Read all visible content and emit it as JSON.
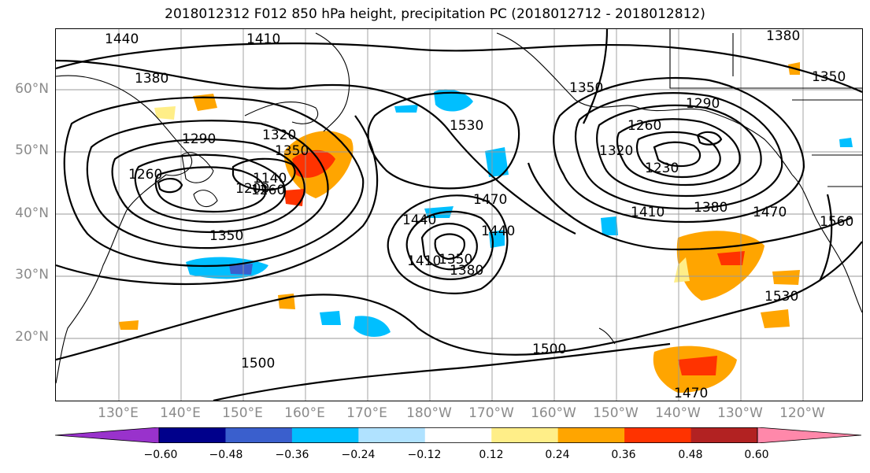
{
  "title": "2018012312 F012 850 hPa height, precipitation PC (2018012712 - 2018012812)",
  "lat_labels": [
    "60°N",
    "50°N",
    "40°N",
    "30°N",
    "20°N"
  ],
  "lon_labels": [
    "130°E",
    "140°E",
    "150°E",
    "160°E",
    "170°E",
    "180°W",
    "170°W",
    "160°W",
    "150°W",
    "140°W",
    "130°W",
    "120°W"
  ],
  "contour_labels": [
    "1440",
    "1410",
    "1380",
    "1380",
    "1350",
    "1260",
    "1290",
    "1320",
    "1350",
    "1200",
    "1140",
    "1260",
    "1350",
    "1530",
    "1440",
    "1470",
    "1440",
    "1410",
    "1350",
    "1380",
    "1350",
    "1290",
    "1260",
    "1230",
    "1320",
    "1410",
    "1380",
    "1470",
    "1560",
    "1530",
    "1500",
    "1500",
    "1470"
  ],
  "colorbar": {
    "colors": [
      "#9932cc",
      "#00008b",
      "#3a5fcd",
      "#00bfff",
      "#b0e2ff",
      "#ffffff",
      "#ffee88",
      "#ffa500",
      "#ff3300",
      "#b22222",
      "#ff88aa"
    ],
    "ticks": [
      "−0.60",
      "−0.48",
      "−0.36",
      "−0.24",
      "−0.12",
      "0.12",
      "0.24",
      "0.36",
      "0.48",
      "0.60"
    ]
  }
}
